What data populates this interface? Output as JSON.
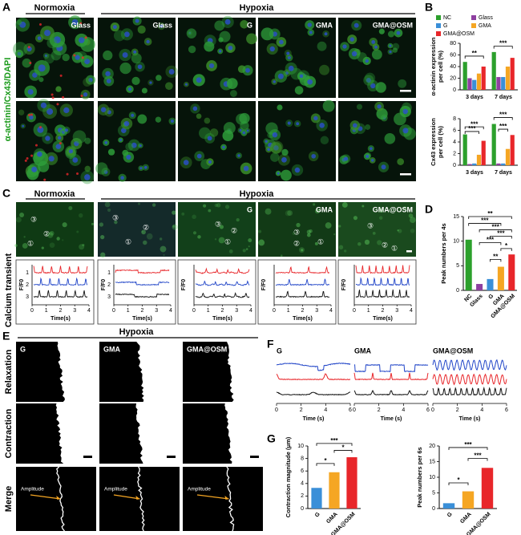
{
  "panel_letters": [
    "A",
    "B",
    "C",
    "D",
    "E",
    "F",
    "G"
  ],
  "panel_a": {
    "stain_label": "α-actinin/Cx43/DAPI",
    "groups": [
      "Normoxia",
      "Hypoxia"
    ],
    "columns": [
      "Glass",
      "Glass",
      "G",
      "GMA",
      "GMA@OSM"
    ]
  },
  "panel_c": {
    "side_label": "Calcium transient",
    "groups": [
      "Normoxia",
      "Hypoxia"
    ],
    "columns": [
      "G",
      "GMA",
      "GMA@OSM"
    ],
    "roi_labels": [
      "①",
      "②",
      "③"
    ],
    "y_label": "F/F0",
    "x_label": "Time(s)",
    "xticks": [
      0,
      1,
      2,
      3,
      4
    ],
    "trace_labels": [
      1,
      2,
      3
    ]
  },
  "panel_e": {
    "group": "Hypoxia",
    "columns": [
      "G",
      "GMA",
      "GMA@OSM"
    ],
    "rows": [
      "Relaxation",
      "Contraction",
      "Merge"
    ],
    "annotation": "Amplitude"
  },
  "panel_f": {
    "columns": [
      "G",
      "GMA",
      "GMA@OSM"
    ],
    "x_label": "Time (s)",
    "xticks": [
      0,
      2,
      4,
      6
    ]
  },
  "chart_data": [
    {
      "type": "bar",
      "y_label": [
        "α-actinin expression",
        "per cell (%)"
      ],
      "categories": [
        "3 days",
        "7 days"
      ],
      "series": [
        {
          "name": "NC",
          "color": "#2ca02c",
          "values": [
            48,
            65
          ]
        },
        {
          "name": "Glass",
          "color": "#8e3fa0",
          "values": [
            20,
            22
          ]
        },
        {
          "name": "G",
          "color": "#3a8fd8",
          "values": [
            17,
            22
          ]
        },
        {
          "name": "GMA",
          "color": "#f5a623",
          "values": [
            28,
            40
          ]
        },
        {
          "name": "GMA@OSM",
          "color": "#e8262a",
          "values": [
            40,
            55
          ]
        }
      ],
      "ylim": [
        0,
        80
      ],
      "yticks": [
        0,
        20,
        40,
        60,
        80
      ],
      "significance": [
        "**",
        "***"
      ]
    },
    {
      "type": "bar",
      "y_label": [
        "Cx43 expression",
        "per cell (%)"
      ],
      "categories": [
        "3 days",
        "7 days"
      ],
      "series": [
        {
          "name": "NC",
          "color": "#2ca02c",
          "values": [
            5.3,
            7.1
          ]
        },
        {
          "name": "Glass",
          "color": "#8e3fa0",
          "values": [
            0.2,
            0.3
          ]
        },
        {
          "name": "G",
          "color": "#3a8fd8",
          "values": [
            0.3,
            0.3
          ]
        },
        {
          "name": "GMA",
          "color": "#f5a623",
          "values": [
            1.8,
            2.8
          ]
        },
        {
          "name": "GMA@OSM",
          "color": "#e8262a",
          "values": [
            4.2,
            5.2
          ]
        }
      ],
      "ylim": [
        0,
        8
      ],
      "yticks": [
        0,
        2,
        4,
        6,
        8
      ],
      "significance": [
        "***",
        "***",
        "***",
        "***"
      ]
    },
    {
      "type": "bar",
      "y_label": [
        "Peak numbers per 4s"
      ],
      "categories": [
        "NC",
        "Glass",
        "G",
        "GMA",
        "GMA@OSM"
      ],
      "values": [
        10.3,
        1.3,
        2.3,
        4.8,
        7.3
      ],
      "colors": [
        "#2ca02c",
        "#8e3fa0",
        "#3a8fd8",
        "#f5a623",
        "#e8262a"
      ],
      "ylim": [
        0,
        15
      ],
      "yticks": [
        0,
        5,
        10,
        15
      ],
      "significance": [
        "**",
        "***",
        "***",
        "***",
        "***",
        "**",
        "*"
      ]
    },
    {
      "type": "bar",
      "y_label": [
        "Contraction magnitude (μm)"
      ],
      "categories": [
        "G",
        "GMA",
        "GMA@OSM"
      ],
      "values": [
        3.3,
        5.8,
        8.2
      ],
      "colors": [
        "#3a8fd8",
        "#f5a623",
        "#e8262a"
      ],
      "ylim": [
        0,
        10
      ],
      "yticks": [
        0,
        2,
        4,
        6,
        8,
        10
      ],
      "significance": [
        "***",
        "*",
        "*"
      ]
    },
    {
      "type": "bar",
      "y_label": [
        "Peak numbers per 6s"
      ],
      "categories": [
        "G",
        "GMA",
        "GMA@OSM"
      ],
      "values": [
        1.7,
        5.5,
        13
      ],
      "colors": [
        "#3a8fd8",
        "#f5a623",
        "#e8262a"
      ],
      "ylim": [
        0,
        20
      ],
      "yticks": [
        0,
        5,
        10,
        15,
        20
      ],
      "significance": [
        "***",
        "*",
        "***"
      ]
    }
  ]
}
